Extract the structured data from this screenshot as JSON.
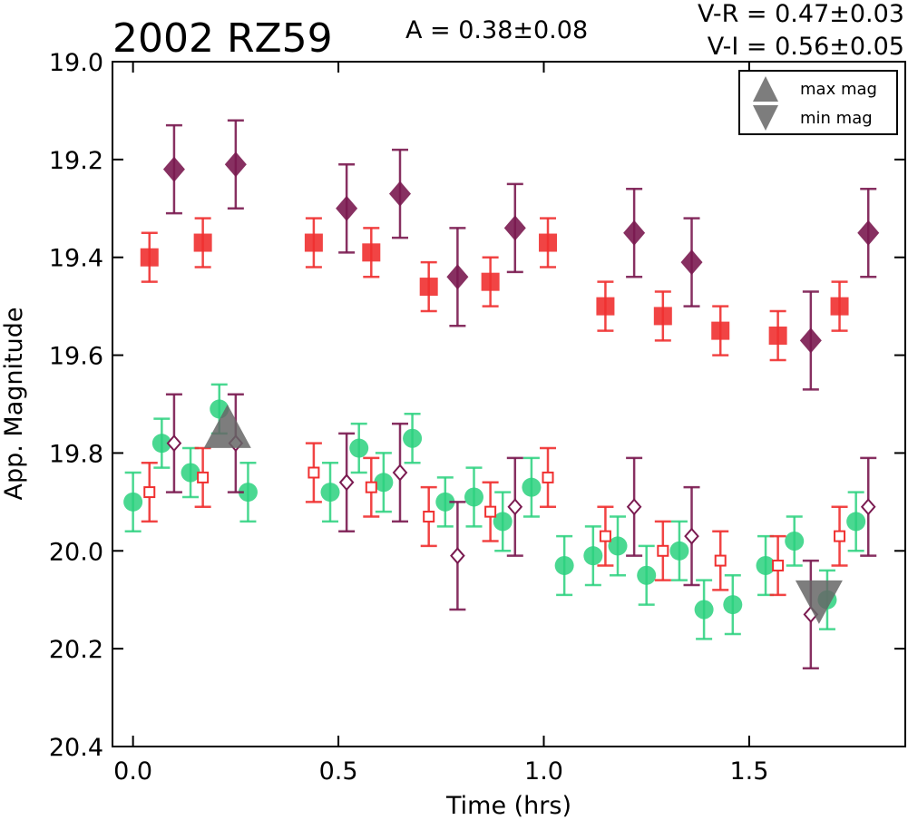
{
  "chart_data": {
    "type": "scatter",
    "title": "2002 RZ59",
    "annotations": {
      "amplitude": "A  = 0.38±0.08",
      "vr": "V-R = 0.47±0.03",
      "vi": "V-I  = 0.56±0.05"
    },
    "xlabel": "Time (hrs)",
    "ylabel": "App. Magnitude",
    "xlim": [
      -0.05,
      1.88
    ],
    "ylim": [
      20.4,
      19.0
    ],
    "y_inverted": true,
    "xticks": [
      "0.0",
      "0.5",
      "1.0",
      "1.5"
    ],
    "xtick_values": [
      0.0,
      0.5,
      1.0,
      1.5
    ],
    "yticks": [
      "19.0",
      "19.2",
      "19.4",
      "19.6",
      "19.8",
      "20.0",
      "20.2",
      "20.4"
    ],
    "ytick_values": [
      19.0,
      19.2,
      19.4,
      19.6,
      19.8,
      20.0,
      20.2,
      20.4
    ],
    "grid": false,
    "legend": {
      "position": "top-right",
      "entries": [
        {
          "label": "max mag",
          "marker": "triangle-up"
        },
        {
          "label": "min mag",
          "marker": "triangle-down"
        }
      ]
    },
    "series": [
      {
        "marker": "square",
        "color": "#f03030",
        "alpha": 0.9,
        "points": [
          {
            "x": 0.04,
            "y": 19.4,
            "err": 0.05
          },
          {
            "x": 0.17,
            "y": 19.37,
            "err": 0.05
          },
          {
            "x": 0.44,
            "y": 19.37,
            "err": 0.05
          },
          {
            "x": 0.58,
            "y": 19.39,
            "err": 0.05
          },
          {
            "x": 0.72,
            "y": 19.46,
            "err": 0.05
          },
          {
            "x": 0.87,
            "y": 19.45,
            "err": 0.05
          },
          {
            "x": 1.01,
            "y": 19.37,
            "err": 0.05
          },
          {
            "x": 1.15,
            "y": 19.5,
            "err": 0.05
          },
          {
            "x": 1.29,
            "y": 19.52,
            "err": 0.05
          },
          {
            "x": 1.43,
            "y": 19.55,
            "err": 0.05
          },
          {
            "x": 1.57,
            "y": 19.56,
            "err": 0.05
          },
          {
            "x": 1.72,
            "y": 19.5,
            "err": 0.05
          }
        ]
      },
      {
        "marker": "diamond",
        "color": "#7a1a50",
        "alpha": 0.9,
        "points": [
          {
            "x": 0.1,
            "y": 19.22,
            "err": 0.09
          },
          {
            "x": 0.25,
            "y": 19.21,
            "err": 0.09
          },
          {
            "x": 0.52,
            "y": 19.3,
            "err": 0.09
          },
          {
            "x": 0.65,
            "y": 19.27,
            "err": 0.09
          },
          {
            "x": 0.79,
            "y": 19.44,
            "err": 0.1
          },
          {
            "x": 0.93,
            "y": 19.34,
            "err": 0.09
          },
          {
            "x": 1.22,
            "y": 19.35,
            "err": 0.09
          },
          {
            "x": 1.36,
            "y": 19.41,
            "err": 0.09
          },
          {
            "x": 1.65,
            "y": 19.57,
            "err": 0.1
          },
          {
            "x": 1.79,
            "y": 19.35,
            "err": 0.09
          }
        ]
      },
      {
        "marker": "circle",
        "color": "#2ad17e",
        "alpha": 0.85,
        "points": [
          {
            "x": 0.0,
            "y": 19.9,
            "err": 0.06
          },
          {
            "x": 0.07,
            "y": 19.78,
            "err": 0.05
          },
          {
            "x": 0.14,
            "y": 19.84,
            "err": 0.05
          },
          {
            "x": 0.21,
            "y": 19.71,
            "err": 0.05
          },
          {
            "x": 0.28,
            "y": 19.88,
            "err": 0.06
          },
          {
            "x": 0.48,
            "y": 19.88,
            "err": 0.06
          },
          {
            "x": 0.55,
            "y": 19.79,
            "err": 0.05
          },
          {
            "x": 0.61,
            "y": 19.86,
            "err": 0.06
          },
          {
            "x": 0.68,
            "y": 19.77,
            "err": 0.05
          },
          {
            "x": 0.76,
            "y": 19.9,
            "err": 0.05
          },
          {
            "x": 0.83,
            "y": 19.89,
            "err": 0.06
          },
          {
            "x": 0.9,
            "y": 19.94,
            "err": 0.06
          },
          {
            "x": 0.97,
            "y": 19.87,
            "err": 0.06
          },
          {
            "x": 1.05,
            "y": 20.03,
            "err": 0.06
          },
          {
            "x": 1.12,
            "y": 20.01,
            "err": 0.06
          },
          {
            "x": 1.18,
            "y": 19.99,
            "err": 0.06
          },
          {
            "x": 1.25,
            "y": 20.05,
            "err": 0.06
          },
          {
            "x": 1.33,
            "y": 20.0,
            "err": 0.06
          },
          {
            "x": 1.39,
            "y": 20.12,
            "err": 0.06
          },
          {
            "x": 1.46,
            "y": 20.11,
            "err": 0.06
          },
          {
            "x": 1.54,
            "y": 20.03,
            "err": 0.06
          },
          {
            "x": 1.61,
            "y": 19.98,
            "err": 0.05
          },
          {
            "x": 1.69,
            "y": 20.1,
            "err": 0.06
          },
          {
            "x": 1.76,
            "y": 19.94,
            "err": 0.06
          }
        ]
      },
      {
        "marker": "square-open",
        "color": "#f03030",
        "alpha": 0.9,
        "points": [
          {
            "x": 0.04,
            "y": 19.88,
            "err": 0.06
          },
          {
            "x": 0.17,
            "y": 19.85,
            "err": 0.06
          },
          {
            "x": 0.44,
            "y": 19.84,
            "err": 0.06
          },
          {
            "x": 0.58,
            "y": 19.87,
            "err": 0.06
          },
          {
            "x": 0.72,
            "y": 19.93,
            "err": 0.06
          },
          {
            "x": 0.87,
            "y": 19.92,
            "err": 0.06
          },
          {
            "x": 1.01,
            "y": 19.85,
            "err": 0.06
          },
          {
            "x": 1.15,
            "y": 19.97,
            "err": 0.06
          },
          {
            "x": 1.29,
            "y": 20.0,
            "err": 0.06
          },
          {
            "x": 1.43,
            "y": 20.02,
            "err": 0.06
          },
          {
            "x": 1.57,
            "y": 20.03,
            "err": 0.06
          },
          {
            "x": 1.72,
            "y": 19.97,
            "err": 0.06
          }
        ]
      },
      {
        "marker": "diamond-open",
        "color": "#7a1a50",
        "alpha": 0.9,
        "points": [
          {
            "x": 0.1,
            "y": 19.78,
            "err": 0.1
          },
          {
            "x": 0.25,
            "y": 19.78,
            "err": 0.1
          },
          {
            "x": 0.52,
            "y": 19.86,
            "err": 0.1
          },
          {
            "x": 0.65,
            "y": 19.84,
            "err": 0.1
          },
          {
            "x": 0.79,
            "y": 20.01,
            "err": 0.11
          },
          {
            "x": 0.93,
            "y": 19.91,
            "err": 0.1
          },
          {
            "x": 1.22,
            "y": 19.91,
            "err": 0.1
          },
          {
            "x": 1.36,
            "y": 19.97,
            "err": 0.1
          },
          {
            "x": 1.65,
            "y": 20.13,
            "err": 0.11
          },
          {
            "x": 1.79,
            "y": 19.91,
            "err": 0.1
          }
        ]
      },
      {
        "marker": "triangle-up",
        "color": "#666666",
        "alpha": 0.85,
        "points": [
          {
            "x": 0.23,
            "y": 19.76
          }
        ]
      },
      {
        "marker": "triangle-down",
        "color": "#666666",
        "alpha": 0.85,
        "points": [
          {
            "x": 1.67,
            "y": 20.09
          }
        ]
      }
    ]
  }
}
